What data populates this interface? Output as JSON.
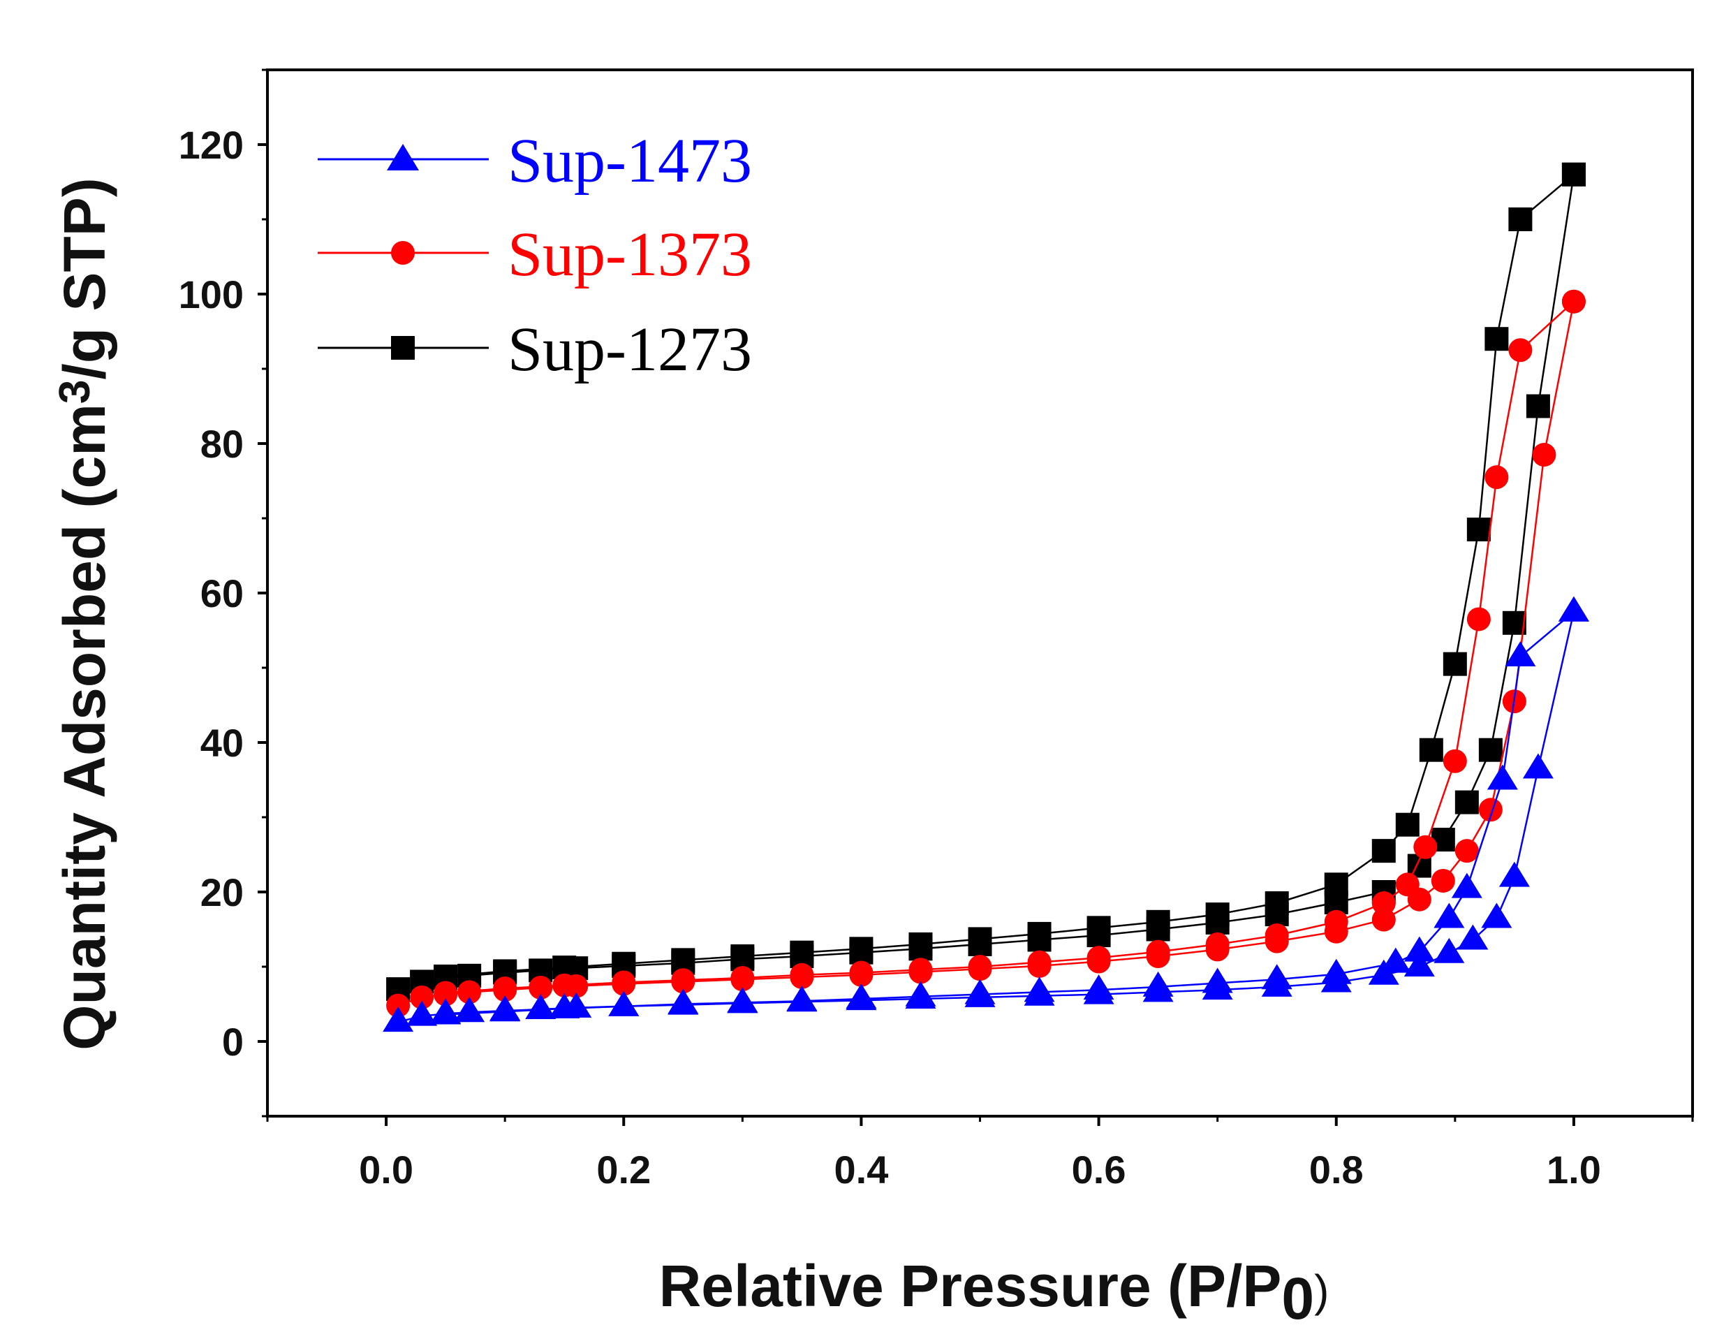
{
  "chart_data": {
    "type": "line",
    "xlabel": "Relative Pressure (P/P",
    "xlabel_sub": "0",
    "xlabel_close": ")",
    "ylabel": "Quantity Adsorbed (cm",
    "ylabel_sup": "3",
    "ylabel_rest": "/g STP)",
    "xlim": [
      -0.1,
      1.1
    ],
    "ylim": [
      -10,
      130
    ],
    "xticks": [
      0.0,
      0.2,
      0.4,
      0.6,
      0.8,
      1.0
    ],
    "xtick_labels": [
      "0.0",
      "0.2",
      "0.4",
      "0.6",
      "0.8",
      "1.0"
    ],
    "yticks": [
      0,
      20,
      40,
      60,
      80,
      100,
      120
    ],
    "ytick_labels": [
      "0",
      "20",
      "40",
      "60",
      "80",
      "100",
      "120"
    ],
    "legend_position": "top-left",
    "series": [
      {
        "name": "Sup-1473",
        "color": "#0000ff",
        "marker": "triangle",
        "adsorption": [
          [
            0.01,
            2.6
          ],
          [
            0.03,
            3.4
          ],
          [
            0.05,
            3.7
          ],
          [
            0.07,
            3.9
          ],
          [
            0.1,
            4.1
          ],
          [
            0.13,
            4.3
          ],
          [
            0.16,
            4.5
          ],
          [
            0.2,
            4.7
          ],
          [
            0.25,
            4.9
          ],
          [
            0.3,
            5.1
          ],
          [
            0.35,
            5.3
          ],
          [
            0.4,
            5.5
          ],
          [
            0.45,
            5.7
          ],
          [
            0.5,
            5.9
          ],
          [
            0.55,
            6.1
          ],
          [
            0.6,
            6.3
          ],
          [
            0.65,
            6.6
          ],
          [
            0.7,
            6.9
          ],
          [
            0.75,
            7.3
          ],
          [
            0.8,
            7.9
          ],
          [
            0.84,
            8.9
          ],
          [
            0.87,
            10.0
          ],
          [
            0.895,
            11.8
          ],
          [
            0.915,
            13.6
          ],
          [
            0.935,
            16.5
          ],
          [
            0.95,
            22.0
          ],
          [
            0.97,
            36.5
          ],
          [
            1.0,
            57.5
          ]
        ],
        "desorption": [
          [
            1.0,
            57.5
          ],
          [
            0.955,
            51.5
          ],
          [
            0.94,
            35.0
          ],
          [
            0.91,
            20.5
          ],
          [
            0.895,
            16.5
          ],
          [
            0.87,
            12.0
          ],
          [
            0.85,
            10.5
          ],
          [
            0.8,
            9.0
          ],
          [
            0.75,
            8.3
          ],
          [
            0.7,
            7.8
          ],
          [
            0.65,
            7.3
          ],
          [
            0.6,
            6.9
          ],
          [
            0.55,
            6.6
          ],
          [
            0.5,
            6.3
          ],
          [
            0.45,
            6.0
          ],
          [
            0.4,
            5.7
          ],
          [
            0.35,
            5.4
          ],
          [
            0.3,
            5.2
          ],
          [
            0.25,
            5.0
          ],
          [
            0.2,
            4.7
          ],
          [
            0.15,
            4.4
          ],
          [
            0.1,
            4.0
          ],
          [
            0.05,
            3.6
          ]
        ]
      },
      {
        "name": "Sup-1373",
        "color": "#ff0000",
        "marker": "circle",
        "adsorption": [
          [
            0.01,
            4.8
          ],
          [
            0.03,
            5.9
          ],
          [
            0.05,
            6.3
          ],
          [
            0.07,
            6.6
          ],
          [
            0.1,
            6.9
          ],
          [
            0.13,
            7.2
          ],
          [
            0.16,
            7.4
          ],
          [
            0.2,
            7.7
          ],
          [
            0.25,
            8.0
          ],
          [
            0.3,
            8.3
          ],
          [
            0.35,
            8.6
          ],
          [
            0.4,
            8.9
          ],
          [
            0.45,
            9.3
          ],
          [
            0.5,
            9.7
          ],
          [
            0.55,
            10.1
          ],
          [
            0.6,
            10.7
          ],
          [
            0.65,
            11.4
          ],
          [
            0.7,
            12.3
          ],
          [
            0.75,
            13.4
          ],
          [
            0.8,
            14.7
          ],
          [
            0.84,
            16.3
          ],
          [
            0.87,
            19.0
          ],
          [
            0.89,
            21.5
          ],
          [
            0.91,
            25.5
          ],
          [
            0.93,
            31.0
          ],
          [
            0.95,
            45.5
          ],
          [
            0.975,
            78.5
          ],
          [
            1.0,
            99.0
          ]
        ],
        "desorption": [
          [
            1.0,
            99.0
          ],
          [
            0.955,
            92.5
          ],
          [
            0.935,
            75.5
          ],
          [
            0.92,
            56.5
          ],
          [
            0.9,
            37.5
          ],
          [
            0.875,
            26.0
          ],
          [
            0.86,
            21.0
          ],
          [
            0.84,
            18.5
          ],
          [
            0.8,
            16.0
          ],
          [
            0.75,
            14.2
          ],
          [
            0.7,
            13.0
          ],
          [
            0.65,
            12.0
          ],
          [
            0.6,
            11.2
          ],
          [
            0.55,
            10.6
          ],
          [
            0.5,
            10.0
          ],
          [
            0.45,
            9.6
          ],
          [
            0.4,
            9.2
          ],
          [
            0.35,
            8.9
          ],
          [
            0.3,
            8.5
          ],
          [
            0.25,
            8.2
          ],
          [
            0.2,
            7.9
          ],
          [
            0.15,
            7.5
          ],
          [
            0.1,
            7.1
          ],
          [
            0.05,
            6.5
          ]
        ]
      },
      {
        "name": "Sup-1273",
        "color": "#000000",
        "marker": "square",
        "adsorption": [
          [
            0.01,
            7.0
          ],
          [
            0.03,
            8.0
          ],
          [
            0.05,
            8.5
          ],
          [
            0.07,
            8.8
          ],
          [
            0.1,
            9.2
          ],
          [
            0.13,
            9.5
          ],
          [
            0.16,
            9.8
          ],
          [
            0.2,
            10.1
          ],
          [
            0.25,
            10.5
          ],
          [
            0.3,
            11.0
          ],
          [
            0.35,
            11.4
          ],
          [
            0.4,
            11.9
          ],
          [
            0.45,
            12.4
          ],
          [
            0.5,
            13.0
          ],
          [
            0.55,
            13.6
          ],
          [
            0.6,
            14.2
          ],
          [
            0.65,
            15.0
          ],
          [
            0.7,
            15.9
          ],
          [
            0.75,
            17.0
          ],
          [
            0.8,
            18.6
          ],
          [
            0.84,
            20.0
          ],
          [
            0.87,
            23.5
          ],
          [
            0.89,
            27.0
          ],
          [
            0.91,
            32.0
          ],
          [
            0.93,
            39.0
          ],
          [
            0.95,
            56.0
          ],
          [
            0.97,
            85.0
          ],
          [
            1.0,
            116.0
          ]
        ],
        "desorption": [
          [
            1.0,
            116.0
          ],
          [
            0.955,
            110.0
          ],
          [
            0.935,
            94.0
          ],
          [
            0.92,
            68.5
          ],
          [
            0.9,
            50.5
          ],
          [
            0.88,
            39.0
          ],
          [
            0.86,
            29.0
          ],
          [
            0.84,
            25.5
          ],
          [
            0.8,
            21.0
          ],
          [
            0.75,
            18.5
          ],
          [
            0.7,
            17.0
          ],
          [
            0.65,
            16.0
          ],
          [
            0.6,
            15.2
          ],
          [
            0.55,
            14.4
          ],
          [
            0.5,
            13.7
          ],
          [
            0.45,
            13.0
          ],
          [
            0.4,
            12.4
          ],
          [
            0.35,
            11.9
          ],
          [
            0.3,
            11.4
          ],
          [
            0.25,
            10.9
          ],
          [
            0.2,
            10.4
          ],
          [
            0.15,
            9.9
          ],
          [
            0.1,
            9.4
          ],
          [
            0.05,
            8.7
          ]
        ]
      }
    ]
  }
}
